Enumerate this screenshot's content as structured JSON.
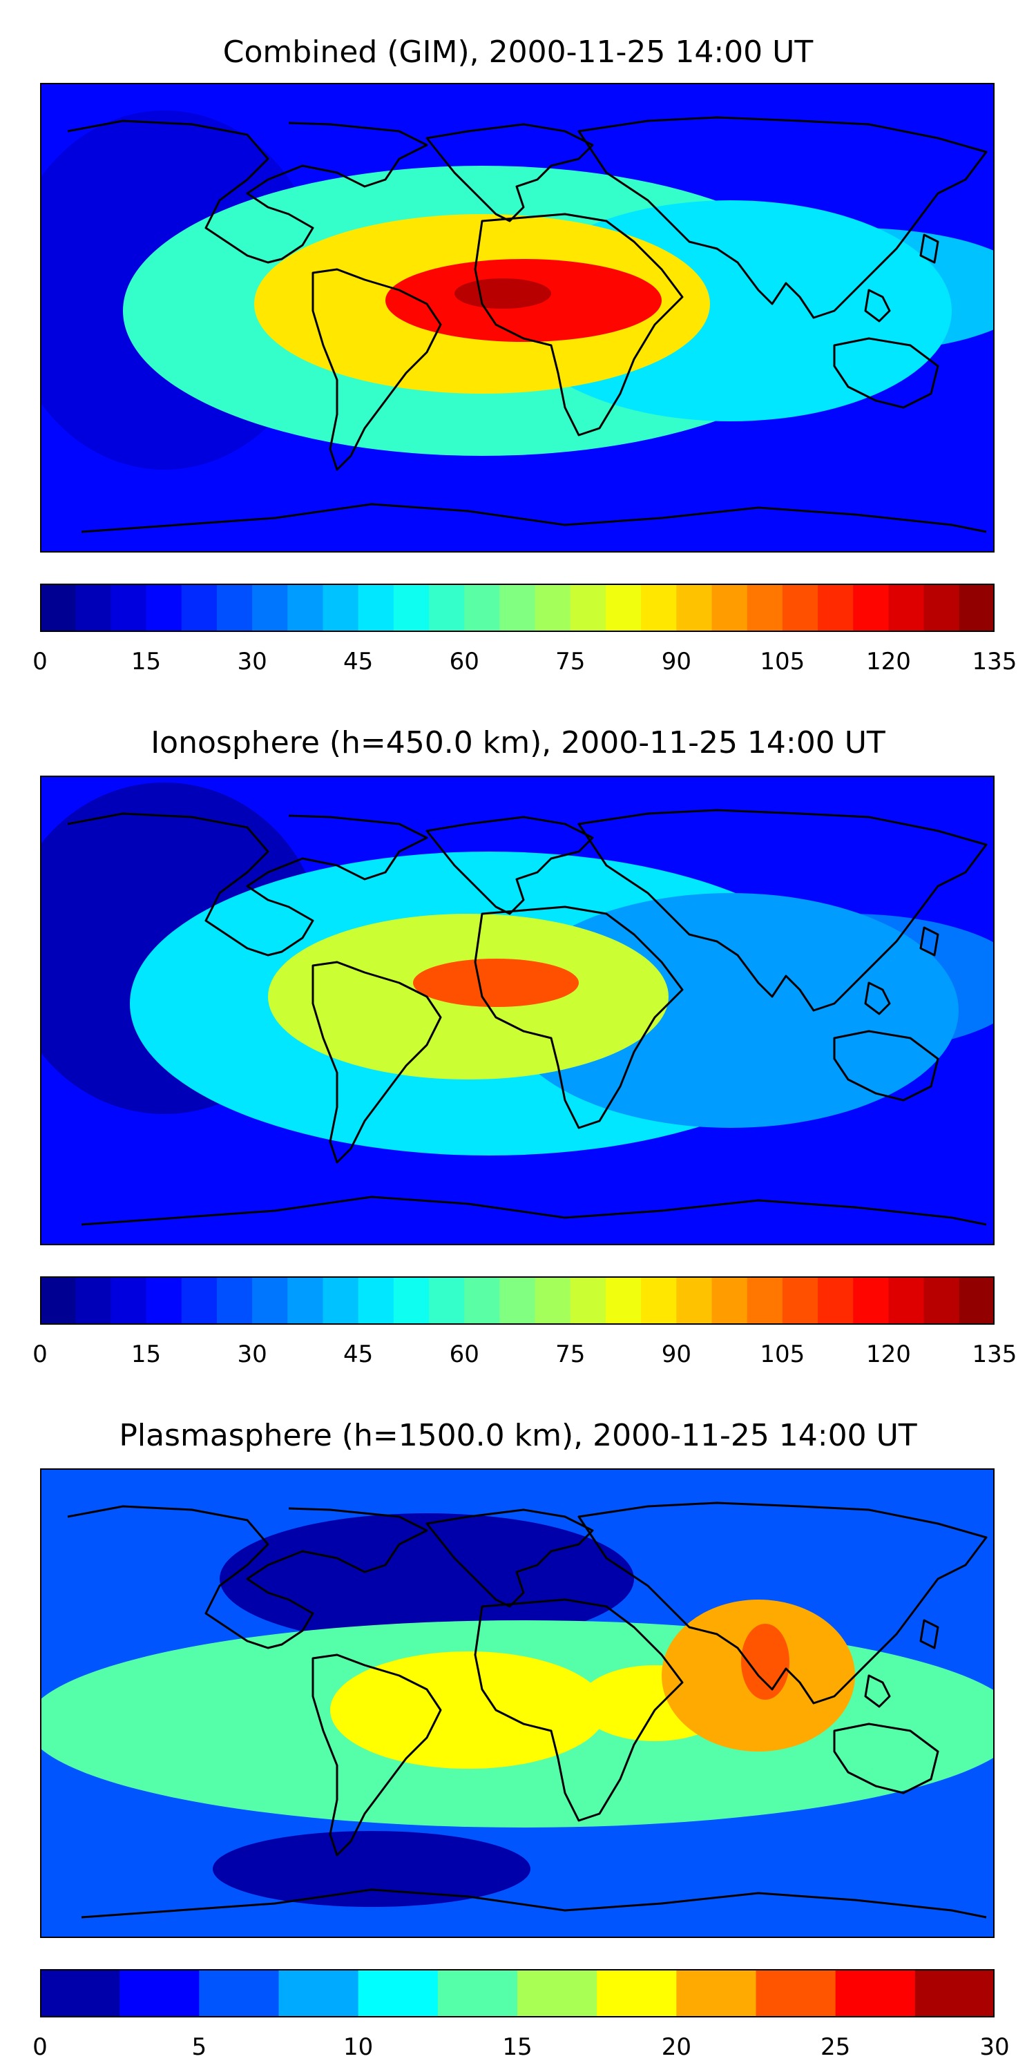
{
  "chart_data": [
    {
      "type": "heatmap",
      "title": "Combined (GIM), 2000-11-25 14:00 UT",
      "colorbar": {
        "min": 0,
        "max": 135,
        "step": 5,
        "ticks": [
          0,
          15,
          30,
          45,
          60,
          75,
          90,
          105,
          120,
          135
        ],
        "tick_labels": [
          "0",
          "15",
          "30",
          "45",
          "60",
          "75",
          "90",
          "105",
          "120",
          "135"
        ]
      },
      "features": [
        {
          "name": "background",
          "value": 18
        },
        {
          "name": "atlantic-equatorial-band",
          "value": 55
        },
        {
          "name": "south-america-africa-crest",
          "value": 85
        },
        {
          "name": "gulf-of-guinea-peak",
          "value": 115
        },
        {
          "name": "west-africa-max",
          "value": 125
        },
        {
          "name": "indian-ocean-band",
          "value": 45
        },
        {
          "name": "southeast-asia-band",
          "value": 40
        },
        {
          "name": "pacific-low",
          "value": 10
        }
      ]
    },
    {
      "type": "heatmap",
      "title": "Ionosphere  (h=450.0 km), 2000-11-25 14:00 UT",
      "colorbar": {
        "min": 0,
        "max": 135,
        "step": 5,
        "ticks": [
          0,
          15,
          30,
          45,
          60,
          75,
          90,
          105,
          120,
          135
        ],
        "tick_labels": [
          "0",
          "15",
          "30",
          "45",
          "60",
          "75",
          "90",
          "105",
          "120",
          "135"
        ]
      },
      "features": [
        {
          "name": "background",
          "value": 15
        },
        {
          "name": "atlantic-equatorial-band",
          "value": 45
        },
        {
          "name": "south-america-africa-crest",
          "value": 75
        },
        {
          "name": "west-africa-max",
          "value": 105
        },
        {
          "name": "indian-ocean-band",
          "value": 35
        },
        {
          "name": "southeast-asia-band",
          "value": 30
        },
        {
          "name": "pacific-low",
          "value": 5
        }
      ]
    },
    {
      "type": "heatmap",
      "title": "Plasmasphere (h=1500.0 km), 2000-11-25 14:00 UT",
      "colorbar": {
        "min": 0,
        "max": 30,
        "step": 2.5,
        "ticks": [
          0,
          5,
          10,
          15,
          20,
          25,
          30
        ],
        "tick_labels": [
          "0",
          "5",
          "10",
          "15",
          "20",
          "25",
          "30"
        ]
      },
      "features": [
        {
          "name": "background",
          "value": 6
        },
        {
          "name": "equatorial-band",
          "value": 13
        },
        {
          "name": "atlantic-max",
          "value": 19
        },
        {
          "name": "africa-arabia-max",
          "value": 18
        },
        {
          "name": "india-max",
          "value": 21
        },
        {
          "name": "india-peak",
          "value": 23
        },
        {
          "name": "north-atlantic-low",
          "value": 2
        },
        {
          "name": "south-pacific-low",
          "value": 2
        }
      ]
    }
  ]
}
